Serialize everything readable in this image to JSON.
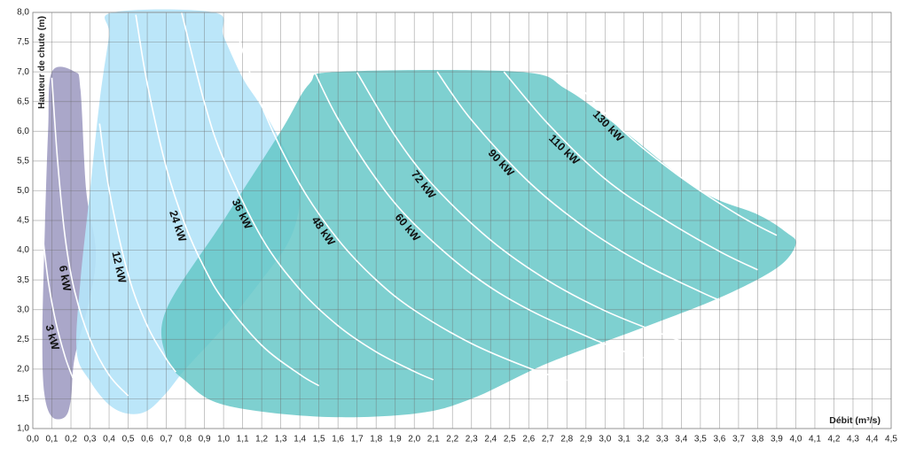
{
  "chart_data": {
    "type": "line",
    "y_label": "Hauteur de chute (m)",
    "x_label": "Débit (m³/s)",
    "grid": true,
    "line_color": "#ffffff",
    "xlim": [
      0,
      4.5
    ],
    "ylim": [
      1,
      8
    ],
    "xticks": [
      {
        "value": 0,
        "label": "0,0"
      },
      {
        "value": 0.1,
        "label": "0,1"
      },
      {
        "value": 0.2,
        "label": "0,2"
      },
      {
        "value": 0.3,
        "label": "0,3"
      },
      {
        "value": 0.4,
        "label": "0,4"
      },
      {
        "value": 0.5,
        "label": "0,5"
      },
      {
        "value": 0.6,
        "label": "0,6"
      },
      {
        "value": 0.7,
        "label": "0,7"
      },
      {
        "value": 0.8,
        "label": "0,8"
      },
      {
        "value": 0.9,
        "label": "0,9"
      },
      {
        "value": 1,
        "label": "1,0"
      },
      {
        "value": 1.1,
        "label": "1,1"
      },
      {
        "value": 1.2,
        "label": "1,2"
      },
      {
        "value": 1.3,
        "label": "1,3"
      },
      {
        "value": 1.4,
        "label": "1,4"
      },
      {
        "value": 1.5,
        "label": "1,5"
      },
      {
        "value": 1.6,
        "label": "1,6"
      },
      {
        "value": 1.7,
        "label": "1,7"
      },
      {
        "value": 1.8,
        "label": "1,8"
      },
      {
        "value": 1.9,
        "label": "1,9"
      },
      {
        "value": 2,
        "label": "2,0"
      },
      {
        "value": 2.1,
        "label": "2,1"
      },
      {
        "value": 2.2,
        "label": "2,2"
      },
      {
        "value": 2.3,
        "label": "2,3"
      },
      {
        "value": 2.4,
        "label": "2,4"
      },
      {
        "value": 2.5,
        "label": "2,5"
      },
      {
        "value": 2.6,
        "label": "2,6"
      },
      {
        "value": 2.7,
        "label": "2,7"
      },
      {
        "value": 2.8,
        "label": "2,8"
      },
      {
        "value": 2.9,
        "label": "2,9"
      },
      {
        "value": 3,
        "label": "3,0"
      },
      {
        "value": 3.1,
        "label": "3,1"
      },
      {
        "value": 3.2,
        "label": "3,2"
      },
      {
        "value": 3.3,
        "label": "3,3"
      },
      {
        "value": 3.4,
        "label": "3,4"
      },
      {
        "value": 3.5,
        "label": "3,5"
      },
      {
        "value": 3.6,
        "label": "3,6"
      },
      {
        "value": 3.7,
        "label": "3,7"
      },
      {
        "value": 3.8,
        "label": "3,8"
      },
      {
        "value": 3.9,
        "label": "3,9"
      },
      {
        "value": 4,
        "label": "4,0"
      },
      {
        "value": 4.1,
        "label": "4,1"
      },
      {
        "value": 4.2,
        "label": "4,2"
      },
      {
        "value": 4.3,
        "label": "4,3"
      },
      {
        "value": 4.4,
        "label": "4,4"
      },
      {
        "value": 4.5,
        "label": "4,5"
      }
    ],
    "yticks": [
      {
        "value": 1,
        "label": "1,0"
      },
      {
        "value": 1.5,
        "label": "1,5"
      },
      {
        "value": 2,
        "label": "2,0"
      },
      {
        "value": 2.5,
        "label": "2,5"
      },
      {
        "value": 3,
        "label": "3,0"
      },
      {
        "value": 3.5,
        "label": "3,5"
      },
      {
        "value": 4,
        "label": "4,0"
      },
      {
        "value": 4.5,
        "label": "4,5"
      },
      {
        "value": 5,
        "label": "5,0"
      },
      {
        "value": 5.5,
        "label": "5,5"
      },
      {
        "value": 6,
        "label": "6,0"
      },
      {
        "value": 6.5,
        "label": "6,5"
      },
      {
        "value": 7,
        "label": "7,0"
      },
      {
        "value": 7.5,
        "label": "7,5"
      },
      {
        "value": 8,
        "label": "8,0"
      }
    ],
    "areas": [
      {
        "color": "#a39fc4",
        "x": [
          0.1,
          0.22,
          0.25,
          0.28,
          0.33,
          0.3,
          0.22,
          0.2,
          0.17,
          0.1,
          0.06,
          0.05,
          0.06,
          0.08
        ],
        "y": [
          7.0,
          7.0,
          6.7,
          5.0,
          4.0,
          3.2,
          2.2,
          1.5,
          1.2,
          1.2,
          1.6,
          2.5,
          4.0,
          6.0
        ]
      },
      {
        "color": "#b5e4f8",
        "x": [
          0.42,
          0.95,
          1.0,
          1.1,
          1.2,
          1.35,
          1.4,
          1.35,
          1.2,
          1.0,
          0.8,
          0.7,
          0.6,
          0.5,
          0.4,
          0.3,
          0.23,
          0.25,
          0.3,
          0.35,
          0.4
        ],
        "y": [
          8.0,
          8.0,
          7.6,
          6.9,
          6.4,
          5.5,
          4.9,
          4.2,
          3.5,
          2.7,
          2.0,
          1.6,
          1.3,
          1.25,
          1.4,
          1.8,
          2.3,
          3.5,
          5.0,
          6.5,
          7.6
        ]
      },
      {
        "color": "#62c6c6",
        "x": [
          1.6,
          2.55,
          2.8,
          3.1,
          3.5,
          3.8,
          3.95,
          4.0,
          3.9,
          3.6,
          3.2,
          2.7,
          2.3,
          2.0,
          1.5,
          1.0,
          0.8,
          0.7,
          0.7,
          1.0,
          1.3,
          1.45
        ],
        "y": [
          7.0,
          7.0,
          6.7,
          6.0,
          5.0,
          4.6,
          4.3,
          4.1,
          3.7,
          3.2,
          2.7,
          2.1,
          1.5,
          1.25,
          1.2,
          1.4,
          1.8,
          2.2,
          3.0,
          4.5,
          6.0,
          6.8
        ]
      }
    ],
    "series": [
      {
        "name": "3 kW",
        "x": [
          0.05,
          0.08,
          0.12,
          0.17,
          0.21
        ],
        "values": [
          4.3,
          3.5,
          2.8,
          2.2,
          1.85
        ]
      },
      {
        "name": "6 kW",
        "x": [
          0.1,
          0.13,
          0.17,
          0.22,
          0.3,
          0.4,
          0.5
        ],
        "values": [
          6.9,
          5.5,
          4.2,
          3.3,
          2.5,
          1.9,
          1.55
        ]
      },
      {
        "name": "12 kW",
        "x": [
          0.35,
          0.4,
          0.5,
          0.6,
          0.7,
          0.75
        ],
        "values": [
          6.13,
          5.02,
          3.59,
          2.73,
          2.17,
          1.95
        ]
      },
      {
        "name": "24 kW",
        "x": [
          0.54,
          0.6,
          0.7,
          0.8,
          0.9,
          1.0,
          1.2,
          1.4,
          1.5
        ],
        "values": [
          7.96,
          6.8,
          5.39,
          4.41,
          3.7,
          3.16,
          2.4,
          1.91,
          1.72
        ]
      },
      {
        "name": "36 kW",
        "x": [
          0.78,
          0.9,
          1.0,
          1.2,
          1.4,
          1.6,
          1.8,
          2.0,
          2.1
        ],
        "values": [
          8.0,
          6.48,
          5.53,
          4.21,
          3.34,
          2.73,
          2.29,
          1.96,
          1.82
        ]
      },
      {
        "name": "48 kW",
        "x": [
          1.04,
          1.2,
          1.4,
          1.6,
          1.8,
          2.0,
          2.3,
          2.6,
          2.8
        ],
        "values": [
          7.97,
          6.43,
          5.11,
          4.18,
          3.5,
          2.99,
          2.43,
          2.02,
          1.81
        ]
      },
      {
        "name": "60 kW",
        "x": [
          1.48,
          1.6,
          1.8,
          2.0,
          2.3,
          2.6,
          3.0,
          3.2
        ],
        "values": [
          6.98,
          6.21,
          5.2,
          4.44,
          3.6,
          3.0,
          2.42,
          2.19
        ]
      },
      {
        "name": "72 kW",
        "x": [
          1.7,
          1.9,
          2.1,
          2.4,
          2.7,
          3.0,
          3.3,
          3.4
        ],
        "values": [
          6.99,
          5.92,
          5.09,
          4.17,
          3.49,
          2.98,
          2.59,
          2.47
        ]
      },
      {
        "name": "90 kW",
        "x": [
          2.12,
          2.3,
          2.6,
          2.9,
          3.2,
          3.5,
          3.6
        ],
        "values": [
          7.0,
          6.19,
          5.15,
          4.37,
          3.77,
          3.3,
          3.16
        ]
      },
      {
        "name": "110 kW",
        "x": [
          2.47,
          2.7,
          3.0,
          3.3,
          3.6,
          3.8
        ],
        "values": [
          7.0,
          6.13,
          5.2,
          4.54,
          3.98,
          3.67
        ]
      },
      {
        "name": "130 kW",
        "x": [
          2.8,
          3.1,
          3.4,
          3.7,
          3.9
        ],
        "values": [
          6.98,
          5.99,
          5.22,
          4.59,
          4.25
        ]
      }
    ]
  }
}
